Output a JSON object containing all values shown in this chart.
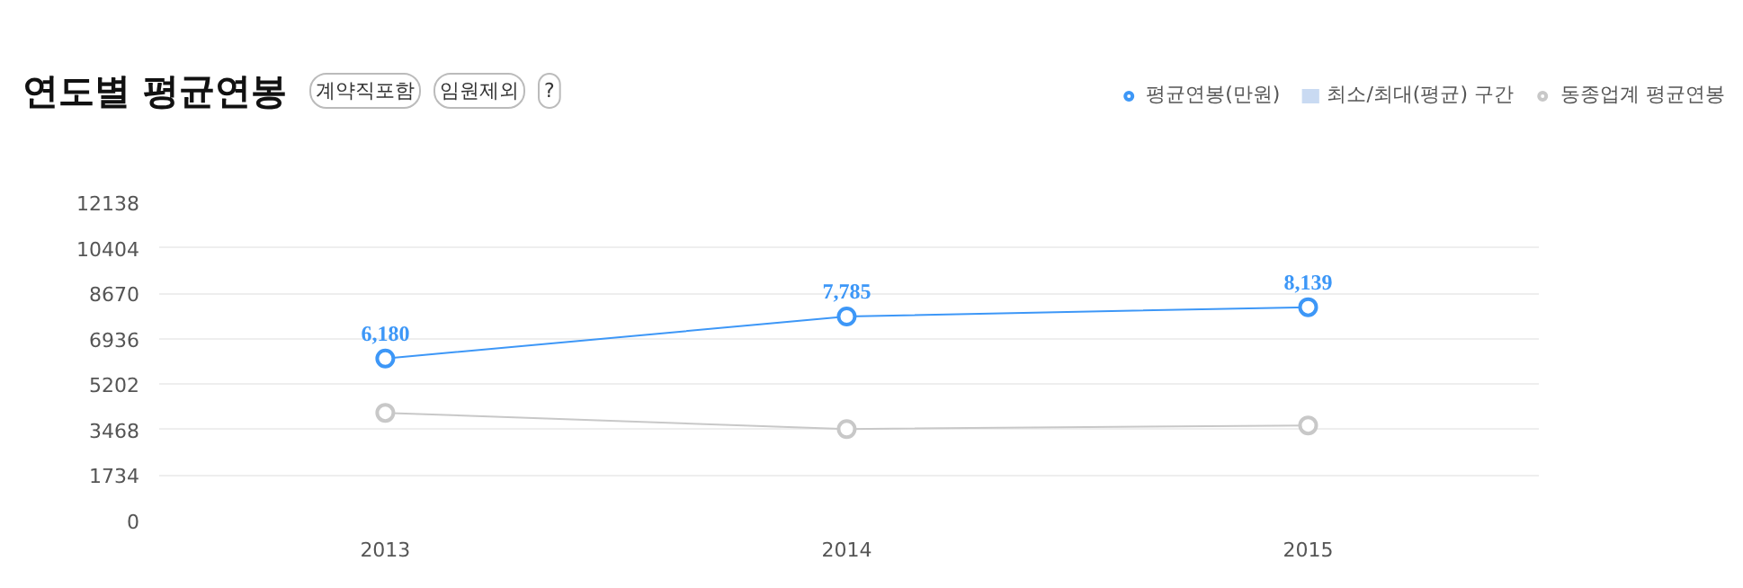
{
  "chart_data": {
    "type": "line",
    "title": "연도별 평균연봉",
    "annotations": [
      "계약직포함",
      "임원제외",
      "?"
    ],
    "categories": [
      "2013",
      "2014",
      "2015"
    ],
    "series": [
      {
        "name": "평균연봉(만원)",
        "color": "#3d97f7",
        "values": [
          6180,
          7785,
          8139
        ],
        "value_labels": [
          "6,180",
          "7,785",
          "8,139"
        ]
      },
      {
        "name": "최소/최대(평균) 구간",
        "type": "area",
        "color": "#c9daf2",
        "values": [
          null,
          null,
          null
        ]
      },
      {
        "name": "동종업계 평균연봉",
        "color": "#c8c8c8",
        "values": [
          4110,
          3490,
          3630
        ]
      }
    ],
    "ylim": [
      0,
      12138
    ],
    "yticks": [
      0,
      1734,
      3468,
      5202,
      6936,
      8670,
      10404,
      12138
    ],
    "grid": "y",
    "legend": "top right",
    "marker": "circle",
    "line_style": "solid"
  }
}
